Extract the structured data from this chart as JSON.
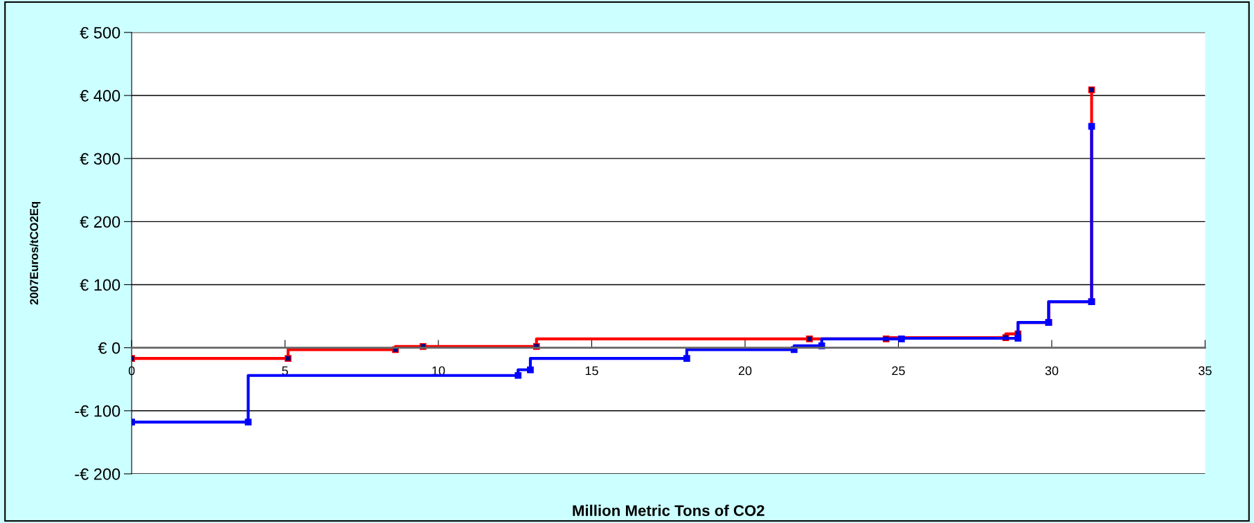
{
  "chart_data": {
    "type": "step",
    "xlabel": "Million Metric Tons of CO2",
    "ylabel": "2007Euros/tCO2Eq",
    "series": [
      {
        "color": "#ff0000",
        "x": [
          0,
          5.1,
          8.6,
          9.5,
          13.2,
          22.1,
          24.6,
          28.5,
          28.9,
          29.9,
          31.3,
          31.3
        ],
        "values": [
          -17,
          -17,
          -3,
          2,
          2,
          14,
          14,
          16,
          22,
          40,
          73,
          409
        ]
      },
      {
        "color": "#0000ff",
        "x": [
          0,
          3.8,
          12.6,
          13.0,
          18.1,
          21.6,
          22.5,
          25.1,
          28.9,
          29.9,
          31.3,
          31.3
        ],
        "values": [
          -118,
          -118,
          -44,
          -35,
          -17,
          -3,
          3,
          14,
          15,
          40,
          73,
          351
        ]
      }
    ],
    "xlim": [
      0,
      35
    ],
    "xticks": [
      0,
      5,
      10,
      15,
      20,
      25,
      30,
      35
    ],
    "ylim": [
      -200,
      500
    ],
    "yticks": [
      {
        "value": -200,
        "label": "-€ 200"
      },
      {
        "value": -100,
        "label": "-€ 100"
      },
      {
        "value": 0,
        "label": "€ 0"
      },
      {
        "value": 100,
        "label": "€ 100"
      },
      {
        "value": 200,
        "label": "€ 200"
      },
      {
        "value": 300,
        "label": "€ 300"
      },
      {
        "value": 400,
        "label": "€ 400"
      },
      {
        "value": 500,
        "label": "€ 500"
      }
    ],
    "grid": "y",
    "marker": "square",
    "line_style": "solid"
  }
}
